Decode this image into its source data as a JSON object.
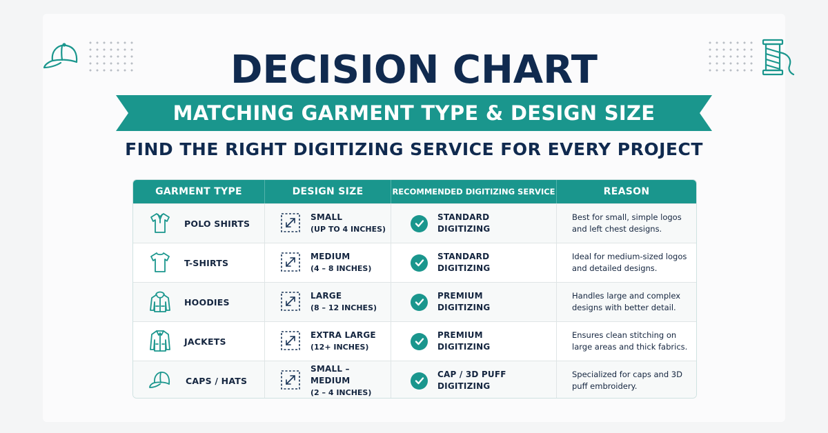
{
  "header": {
    "title": "DECISION CHART",
    "ribbon": "MATCHING GARMENT TYPE & DESIGN SIZE",
    "subtitle": "FIND THE RIGHT DIGITIZING SERVICE FOR EVERY PROJECT"
  },
  "decorations": {
    "left_icon": "cap-icon",
    "right_icon": "thread-spool-icon"
  },
  "colors": {
    "teal": "#1a968d",
    "navy": "#102a4f"
  },
  "table": {
    "columns": [
      "GARMENT TYPE",
      "DESIGN SIZE",
      "RECOMMENDED DIGITIZING SERVICE",
      "REASON"
    ],
    "rows": [
      {
        "garment": "POLO SHIRTS",
        "icon": "polo-shirt-icon",
        "size": "SMALL",
        "size_range": "(UP TO 4 INCHES)",
        "service": "STANDARD\nDIGITIZING",
        "reason": "Best for small, simple logos and left chest designs."
      },
      {
        "garment": "T-SHIRTS",
        "icon": "tshirt-icon",
        "size": "MEDIUM",
        "size_range": "(4 – 8 INCHES)",
        "service": "STANDARD\nDIGITIZING",
        "reason": "Ideal for medium-sized logos and detailed designs."
      },
      {
        "garment": "HOODIES",
        "icon": "hoodie-icon",
        "size": "LARGE",
        "size_range": "(8 – 12 INCHES)",
        "service": "PREMIUM\nDIGITIZING",
        "reason": "Handles large and complex designs with better detail."
      },
      {
        "garment": "JACKETS",
        "icon": "jacket-icon",
        "size": "EXTRA LARGE",
        "size_range": "(12+ INCHES)",
        "service": "PREMIUM\nDIGITIZING",
        "reason": "Ensures clean stitching on large areas and thick fabrics."
      },
      {
        "garment": "CAPS / HATS",
        "icon": "cap-icon",
        "size": "SMALL – MEDIUM",
        "size_range": "(2 – 4 INCHES)",
        "service": "CAP / 3D PUFF\nDIGITIZING",
        "reason": "Specialized for caps and 3D puff embroidery."
      }
    ]
  }
}
